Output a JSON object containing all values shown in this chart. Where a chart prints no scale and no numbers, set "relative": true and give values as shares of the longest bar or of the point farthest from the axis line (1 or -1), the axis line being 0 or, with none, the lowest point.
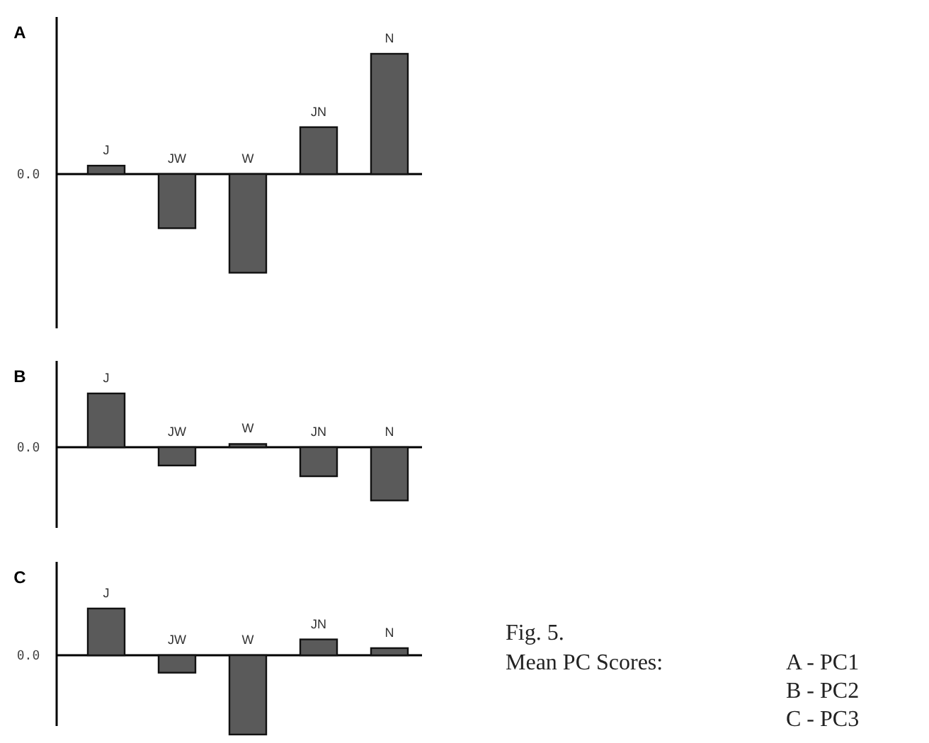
{
  "chart_data": [
    {
      "type": "bar",
      "title": "A",
      "relative": true,
      "categories": [
        "J",
        "JW",
        "W",
        "JN",
        "N"
      ],
      "values": [
        0.07,
        -0.45,
        -0.82,
        0.39,
        1
      ],
      "color": "#5a5a5a",
      "annotations": [
        "0.0"
      ]
    },
    {
      "type": "bar",
      "title": "B",
      "relative": true,
      "categories": [
        "J",
        "JW",
        "W",
        "JN",
        "N"
      ],
      "values": [
        1,
        -0.34,
        0.06,
        -0.54,
        -0.99
      ],
      "color": "#5a5a5a",
      "annotations": [
        "0.0"
      ]
    },
    {
      "type": "bar",
      "title": "C",
      "relative": true,
      "categories": [
        "J",
        "JW",
        "W",
        "JN",
        "N"
      ],
      "values": [
        0.59,
        -0.22,
        -1,
        0.2,
        0.09
      ],
      "color": "#5a5a5a",
      "annotations": [
        "0.0",
        "Fig. 5.",
        "Mean PC Scores:",
        "A - PC1",
        "B - PC2",
        "C - PC3"
      ]
    }
  ]
}
